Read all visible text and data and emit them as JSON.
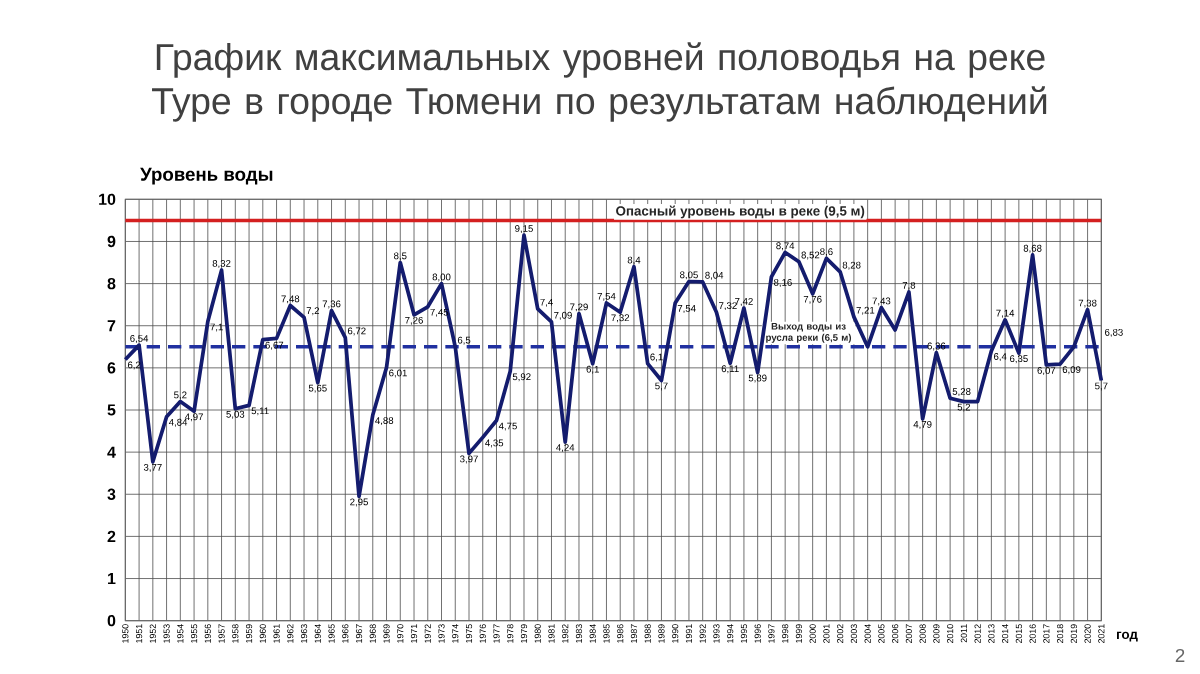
{
  "chart_data": {
    "type": "line",
    "title": "График максимальных уровней половодья на реке Туре в городе Тюмени по результатам наблюдений",
    "ylabel": "Уровень воды",
    "xlabel": "год",
    "x": [
      1950,
      1951,
      1952,
      1953,
      1954,
      1955,
      1956,
      1957,
      1958,
      1959,
      1960,
      1961,
      1962,
      1963,
      1964,
      1965,
      1966,
      1967,
      1968,
      1969,
      1970,
      1971,
      1972,
      1973,
      1974,
      1975,
      1976,
      1977,
      1978,
      1979,
      1980,
      1981,
      1982,
      1983,
      1984,
      1985,
      1986,
      1987,
      1988,
      1989,
      1990,
      1991,
      1992,
      1993,
      1994,
      1995,
      1996,
      1997,
      1998,
      1999,
      2000,
      2001,
      2002,
      2003,
      2004,
      2005,
      2006,
      2007,
      2008,
      2009,
      2010,
      2011,
      2012,
      2013,
      2014,
      2015,
      2016,
      2017,
      2018,
      2019,
      2020,
      2021
    ],
    "series": [
      {
        "color": "#141c6e",
        "values": [
          6.2,
          6.54,
          3.77,
          4.84,
          5.2,
          4.97,
          7.1,
          8.32,
          5.03,
          5.11,
          6.67,
          6.7,
          7.48,
          7.2,
          5.65,
          7.36,
          6.72,
          2.95,
          4.88,
          6.01,
          8.5,
          7.26,
          7.45,
          8.0,
          6.5,
          3.97,
          4.35,
          4.75,
          5.92,
          9.15,
          7.4,
          7.09,
          4.24,
          7.29,
          6.1,
          7.54,
          7.32,
          8.4,
          6.1,
          5.7,
          7.54,
          8.05,
          8.04,
          7.32,
          6.11,
          7.42,
          5.89,
          8.16,
          8.74,
          8.52,
          7.76,
          8.6,
          8.28,
          7.21,
          6.5,
          7.43,
          6.9,
          7.8,
          4.79,
          6.36,
          5.28,
          5.2,
          5.2,
          6.4,
          7.14,
          6.35,
          8.68,
          6.07,
          6.09,
          6.5,
          7.38,
          5.7
        ],
        "value_labels": [
          "6,2",
          "6,54",
          "3,77",
          "4,84",
          "5,2",
          "4,97",
          "7,1",
          "8,32",
          "5,03",
          "5,11",
          "6,67",
          null,
          "7,48",
          "7,2",
          "5,65",
          "7,36",
          "6,72",
          "2,95",
          "4,88",
          "6,01",
          "8,5",
          "7,26",
          "7,45",
          "8,00",
          "6,5",
          "3,97",
          "4,35",
          "4,75",
          "5,92",
          "9,15",
          "7,4",
          "7,09",
          "4,24",
          "7,29",
          "6,1",
          "7,54",
          "7,32",
          "8,4",
          "6,1",
          "5,7",
          "7,54",
          "8,05",
          "8,04",
          "7,32",
          "6,11",
          "7,42",
          "5,89",
          "8,16",
          "8,74",
          "8,52",
          "7,76",
          "8,6",
          "8,28",
          "7,21",
          null,
          "7,43",
          null,
          "7,8",
          "4,79",
          "6,36",
          "5,28",
          "5,2",
          null,
          "6,4",
          "7,14",
          "6,35",
          "8,68",
          "6,07",
          "6,09",
          null,
          "7,38",
          "5,7"
        ]
      }
    ],
    "xlim": [
      1950,
      2021
    ],
    "xticks": [
      1950,
      1951,
      1952,
      1953,
      1954,
      1955,
      1956,
      1957,
      1958,
      1959,
      1960,
      1961,
      1962,
      1963,
      1964,
      1965,
      1966,
      1967,
      1968,
      1969,
      1970,
      1971,
      1972,
      1973,
      1974,
      1975,
      1976,
      1977,
      1978,
      1979,
      1980,
      1981,
      1982,
      1983,
      1984,
      1985,
      1986,
      1987,
      1988,
      1989,
      1990,
      1991,
      1992,
      1993,
      1994,
      1995,
      1996,
      1997,
      1998,
      1999,
      2000,
      2001,
      2002,
      2003,
      2004,
      2005,
      2006,
      2007,
      2008,
      2009,
      2010,
      2011,
      2012,
      2013,
      2014,
      2015,
      2016,
      2017,
      2018,
      2019,
      2020,
      2021
    ],
    "ylim": [
      0,
      10
    ],
    "yticks": [
      0,
      1,
      2,
      3,
      4,
      5,
      6,
      7,
      8,
      9,
      10
    ],
    "grid": true,
    "marker": "none",
    "line_style": "solid",
    "ref_lines": [
      {
        "axis": "y",
        "value": 9.5,
        "label": "Опасный уровень воды в реке (9,5 м)",
        "color": "#d42020",
        "line_style": "solid"
      },
      {
        "axis": "y",
        "value": 6.5,
        "label": "Выход воды из русла реки (6,5 м)",
        "color": "#2030a0",
        "line_style": "dashed"
      }
    ],
    "annotations": [
      {
        "text": "6,83",
        "x": 2021,
        "y": 6.83
      },
      "2"
    ]
  }
}
